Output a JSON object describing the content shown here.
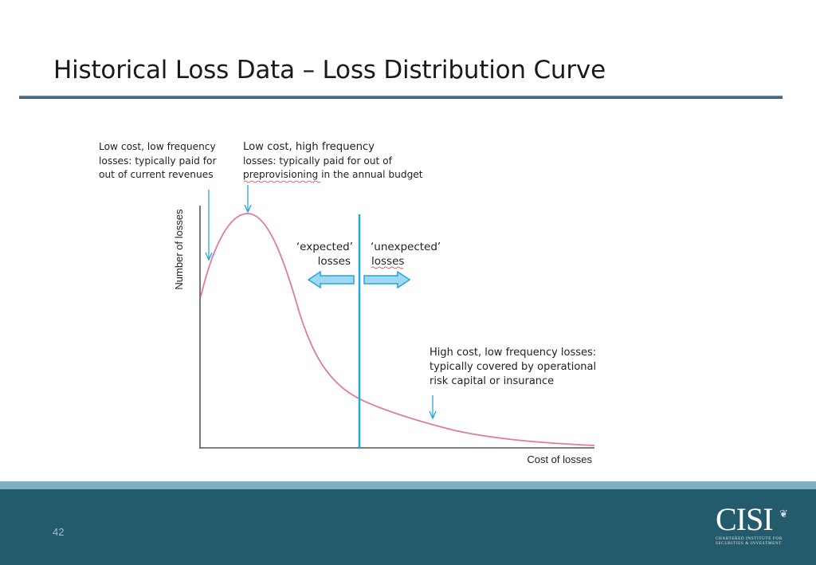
{
  "slide": {
    "title": "Historical Loss Data – Loss Distribution Curve",
    "page_number": "42"
  },
  "logo": {
    "text": "CISI",
    "subtitle_line1": "CHARTERED INSTITUTE FOR",
    "subtitle_line2": "SECURITIES & INVESTMENT"
  },
  "diagram": {
    "y_axis_label": "Number of losses",
    "x_axis_label": "Cost of losses",
    "annotations": {
      "low_cost_low_freq": [
        "Low cost, low frequency",
        "losses: typically paid for",
        "out of current revenues"
      ],
      "low_cost_high_freq": [
        "Low cost, high frequency",
        "losses: typically paid for out of",
        "preprovisioning in the annual budget"
      ],
      "expected": [
        "‘expected’",
        "losses"
      ],
      "unexpected": [
        "‘unexpected’",
        "losses"
      ],
      "high_cost_low_freq": [
        "High cost, low frequency losses:",
        "typically covered by operational",
        "risk capital or insurance"
      ]
    },
    "colors": {
      "curve": "#e07a9e",
      "marker": "#2aa3dc",
      "arrow_fill": "#9fd8f2",
      "axis": "#555555"
    }
  }
}
